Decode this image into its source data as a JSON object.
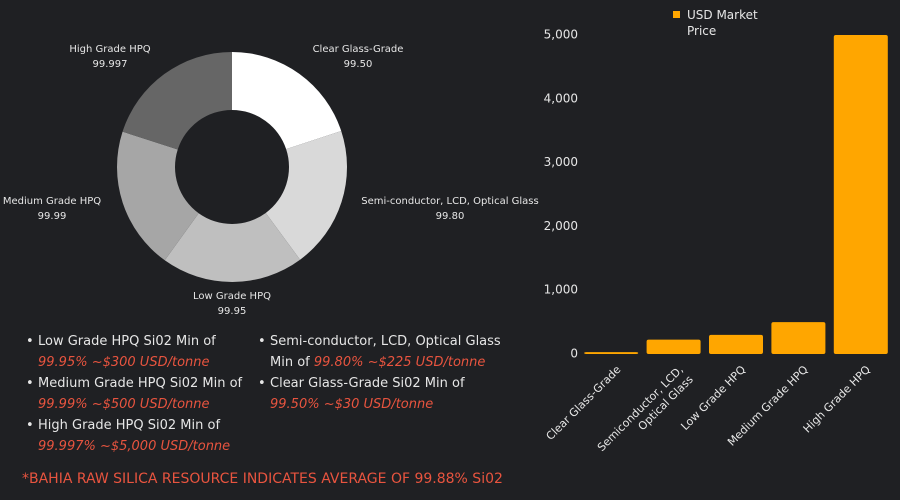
{
  "chart_data": [
    {
      "type": "pie",
      "donut": true,
      "categories": [
        "Clear Glass-Grade",
        "Semi-conductor, LCD, Optical Glass",
        "Low Grade HPQ",
        "Medium Grade HPQ",
        "High Grade HPQ"
      ],
      "values": [
        99.5,
        99.8,
        99.95,
        99.99,
        99.997
      ],
      "value_labels": [
        "99.50",
        "99.80",
        "99.95",
        "99.99",
        "99.997"
      ],
      "colors": [
        "#ffffff",
        "#d9d9d9",
        "#bfbfbf",
        "#a6a6a6",
        "#666666"
      ]
    },
    {
      "type": "bar",
      "categories": [
        "Clear Glass-Grade",
        "Semiconductor, LCD, Optical Glass",
        "Low Grade HPQ",
        "Medium Grade HPQ",
        "High Grade HPQ"
      ],
      "series": [
        {
          "name": "USD Market Price",
          "color": "#ffa600",
          "values": [
            30,
            225,
            300,
            500,
            5000
          ]
        }
      ],
      "ylim": [
        0,
        5000
      ],
      "yticks": [
        0,
        {
          "value": 1000,
          "label": "1,000"
        },
        {
          "value": 2000,
          "label": "2,000"
        },
        {
          "value": 3000,
          "label": "3,000"
        },
        {
          "value": 4000,
          "label": "4,000"
        },
        {
          "value": 5000,
          "label": "5,000"
        }
      ],
      "grid": false,
      "legend": "top"
    }
  ],
  "bullets": [
    {
      "line1": "Low Grade HPQ Si02 Min of",
      "highlight": "99.95% ~$300 USD/tonne"
    },
    {
      "line1": "Medium Grade HPQ Si02 Min of",
      "highlight": "99.99% ~$500 USD/tonne"
    },
    {
      "line1": "High Grade HPQ Si02 Min of",
      "highlight": "99.997% ~$5,000 USD/tonne"
    },
    {
      "line1": "Semi-conductor, LCD, Optical Glass",
      "line2": "Min of",
      "highlight": "99.80% ~$225 USD/tonne"
    },
    {
      "line1": "Clear Glass-Grade Si02 Min of",
      "highlight": "99.50% ~$30 USD/tonne"
    }
  ],
  "footnote": "*BAHIA RAW SILICA RESOURCE INDICATES AVERAGE OF 99.88% Si02"
}
